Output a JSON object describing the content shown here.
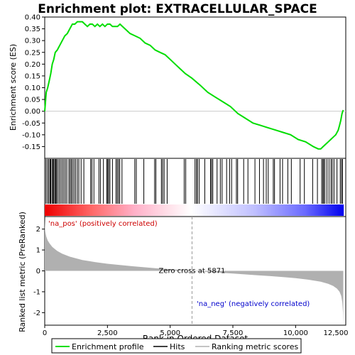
{
  "chart_data": {
    "type": "line",
    "title": "Enrichment plot: EXTRACELLULAR_SPACE",
    "xlabel": "Rank in Ordered Dataset",
    "ylabel_top": "Enrichment score (ES)",
    "ylabel_bottom": "Ranked list metric (PreRanked)",
    "xlim": [
      0,
      12000
    ],
    "x_ticks": [
      0,
      2500,
      5000,
      7500,
      10000,
      12500
    ],
    "x_tick_labels": [
      "0",
      "2,500",
      "5,000",
      "7,500",
      "10,000",
      "12,500"
    ],
    "es_ylim": [
      -0.2,
      0.4
    ],
    "es_ticks": [
      -0.15,
      -0.1,
      -0.05,
      0.0,
      0.05,
      0.1,
      0.15,
      0.2,
      0.25,
      0.3,
      0.35,
      0.4
    ],
    "es_tick_labels": [
      "-0.15",
      "-0.10",
      "-0.05",
      "0.00",
      "0.05",
      "0.10",
      "0.15",
      "0.20",
      "0.25",
      "0.30",
      "0.35",
      "0.40"
    ],
    "metric_ylim": [
      -2.6,
      2.6
    ],
    "metric_ticks": [
      -2,
      -1,
      0,
      1,
      2
    ],
    "metric_tick_labels": [
      "-2",
      "-1",
      "0",
      "1",
      "2"
    ],
    "enrichment_profile": {
      "name": "Enrichment profile",
      "color": "#00dd00",
      "x": [
        0,
        60,
        120,
        180,
        240,
        300,
        360,
        420,
        500,
        600,
        700,
        800,
        900,
        1000,
        1100,
        1200,
        1300,
        1400,
        1500,
        1600,
        1700,
        1800,
        1900,
        2000,
        2100,
        2200,
        2300,
        2400,
        2500,
        2600,
        2700,
        2800,
        2900,
        3000,
        3200,
        3400,
        3600,
        3800,
        4000,
        4200,
        4400,
        4600,
        4800,
        5000,
        5200,
        5400,
        5600,
        5871,
        6200,
        6500,
        6800,
        7100,
        7400,
        7700,
        8000,
        8300,
        8600,
        8900,
        9200,
        9500,
        9800,
        10100,
        10400,
        10700,
        10900,
        11000,
        11100,
        11200,
        11300,
        11400,
        11500,
        11600,
        11700,
        11750,
        11800,
        11850,
        11880,
        11900
      ],
      "y": [
        0.0,
        0.08,
        0.1,
        0.13,
        0.16,
        0.2,
        0.22,
        0.25,
        0.26,
        0.28,
        0.3,
        0.32,
        0.33,
        0.35,
        0.37,
        0.37,
        0.38,
        0.38,
        0.38,
        0.37,
        0.36,
        0.37,
        0.37,
        0.36,
        0.37,
        0.36,
        0.37,
        0.36,
        0.37,
        0.37,
        0.36,
        0.36,
        0.36,
        0.37,
        0.35,
        0.33,
        0.32,
        0.31,
        0.29,
        0.28,
        0.26,
        0.25,
        0.24,
        0.22,
        0.2,
        0.18,
        0.16,
        0.14,
        0.11,
        0.08,
        0.06,
        0.04,
        0.02,
        -0.01,
        -0.03,
        -0.05,
        -0.06,
        -0.07,
        -0.08,
        -0.09,
        -0.1,
        -0.12,
        -0.13,
        -0.15,
        -0.16,
        -0.16,
        -0.15,
        -0.14,
        -0.13,
        -0.12,
        -0.11,
        -0.1,
        -0.08,
        -0.06,
        -0.04,
        -0.01,
        0.0,
        0.005
      ]
    },
    "hits": {
      "name": "Hits",
      "color": "#000000",
      "x": [
        50,
        110,
        160,
        210,
        240,
        290,
        330,
        360,
        400,
        440,
        470,
        520,
        580,
        640,
        700,
        760,
        820,
        880,
        960,
        1010,
        1060,
        1110,
        1170,
        1230,
        1300,
        1360,
        1450,
        1560,
        1830,
        1880,
        1960,
        2160,
        2220,
        2340,
        2470,
        2510,
        2550,
        2600,
        2700,
        2840,
        2890,
        2940,
        2990,
        3080,
        3590,
        3650,
        3950,
        4380,
        4430,
        4650,
        4700,
        4760,
        4880,
        5560,
        5620,
        5990,
        6050,
        6090,
        6160,
        6380,
        6610,
        6650,
        6700,
        6870,
        7000,
        7070,
        7250,
        7370,
        7450,
        7640,
        7690,
        7930,
        8100,
        8380,
        8560,
        8720,
        8830,
        8910,
        9110,
        9160,
        9380,
        9480,
        9690,
        9830,
        10180,
        10350,
        10680,
        10870,
        11040,
        11090,
        11120,
        11170,
        11250,
        11330,
        11410,
        11460,
        11530,
        11650,
        11780,
        11830,
        11870
      ],
      "color_bar": {
        "pos_color": "#ee0000",
        "mid_color": "#ffffff",
        "neg_color": "#0000ee"
      }
    },
    "ranking_metric": {
      "name": "Ranking metric scores",
      "color": "#b0b0b0",
      "x": [
        0,
        20,
        60,
        120,
        200,
        300,
        400,
        500,
        700,
        1000,
        1500,
        2000,
        2500,
        3000,
        3500,
        4000,
        4500,
        5000,
        5500,
        5871,
        6500,
        7000,
        7500,
        8000,
        8500,
        9000,
        9500,
        10000,
        10500,
        11000,
        11300,
        11500,
        11650,
        11750,
        11820,
        11860,
        11890,
        11900
      ],
      "y": [
        2.5,
        1.9,
        1.65,
        1.45,
        1.3,
        1.15,
        1.05,
        0.95,
        0.82,
        0.68,
        0.52,
        0.42,
        0.34,
        0.28,
        0.22,
        0.17,
        0.12,
        0.08,
        0.04,
        0.0,
        -0.05,
        -0.09,
        -0.13,
        -0.17,
        -0.21,
        -0.25,
        -0.3,
        -0.35,
        -0.42,
        -0.52,
        -0.62,
        -0.72,
        -0.85,
        -1.0,
        -1.2,
        -1.5,
        -2.0,
        -2.6
      ]
    },
    "zero_cross": 5871,
    "zero_cross_label": "Zero cross at 5871",
    "pos_label": "'na_pos' (positively correlated)",
    "neg_label": "'na_neg' (negatively correlated)",
    "legend": {
      "placement": "bottom",
      "entries": [
        "Enrichment profile",
        "Hits",
        "Ranking metric scores"
      ]
    }
  }
}
